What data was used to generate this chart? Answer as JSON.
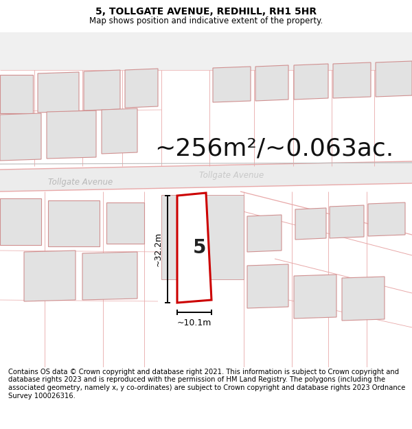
{
  "title": "5, TOLLGATE AVENUE, REDHILL, RH1 5HR",
  "subtitle": "Map shows position and indicative extent of the property.",
  "area_text": "~256m²/~0.063ac.",
  "label_5": "5",
  "dim_width": "~10.1m",
  "dim_height": "~32.2m",
  "street_name_left": "Tollgate Avenue",
  "street_name_right": "Tollgate Avenue",
  "footer": "Contains OS data © Crown copyright and database right 2021. This information is subject to Crown copyright and database rights 2023 and is reproduced with the permission of HM Land Registry. The polygons (including the associated geometry, namely x, y co-ordinates) are subject to Crown copyright and database rights 2023 Ordnance Survey 100026316.",
  "bg_color": "#ffffff",
  "red_plot_color": "#cc0000",
  "title_fontsize": 10,
  "subtitle_fontsize": 8.5,
  "area_fontsize": 26,
  "footer_fontsize": 7.2,
  "building_fill": "#e2e2e2",
  "building_edge": "#d09090",
  "road_fill": "#ececec",
  "road_edge": "#e8a8a8",
  "map_bg": "#f9f9f9"
}
